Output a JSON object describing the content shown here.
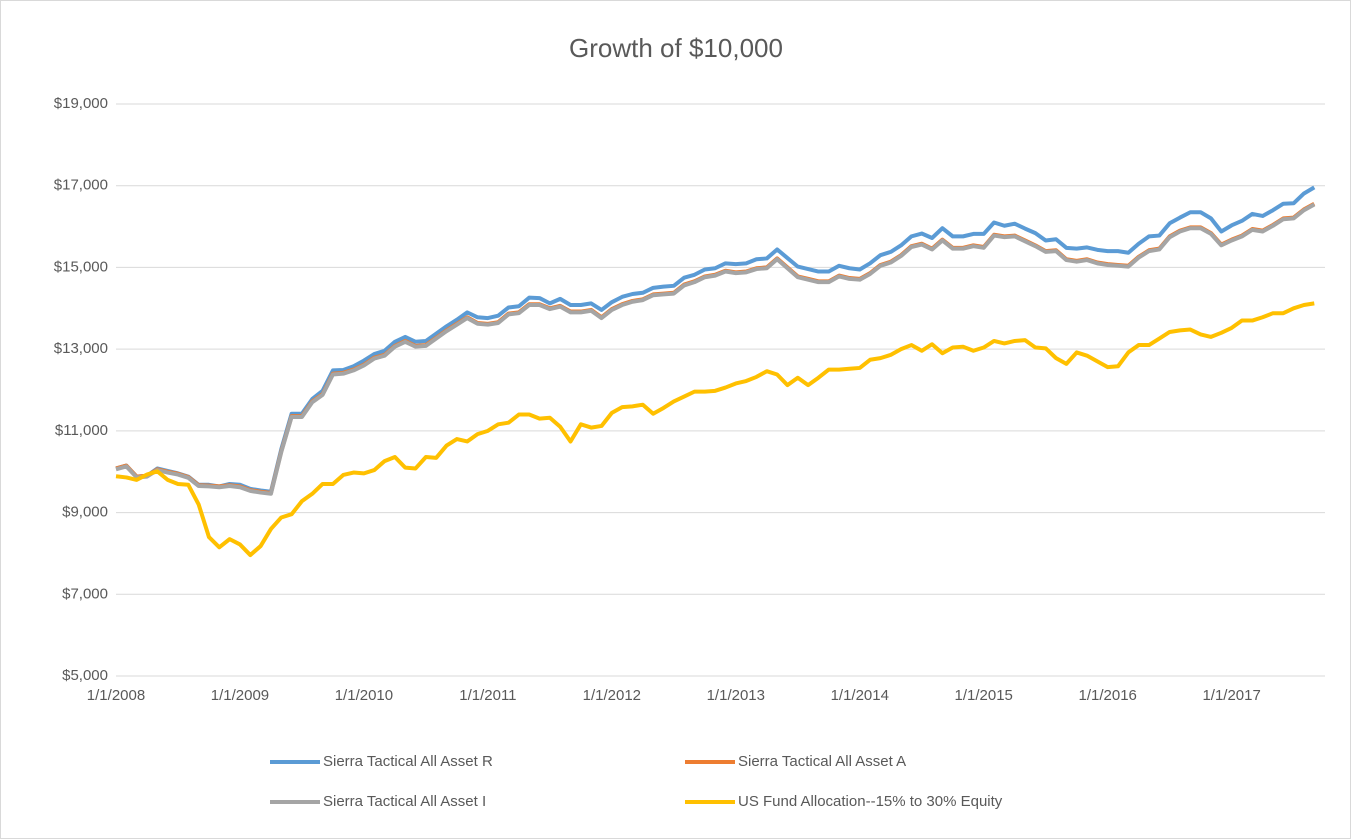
{
  "chart_data": {
    "type": "line",
    "title": "Growth of $10,000",
    "categories": [
      "1/1/2008",
      null,
      null,
      null,
      null,
      null,
      null,
      null,
      null,
      null,
      null,
      null,
      "1/1/2009",
      null,
      null,
      null,
      null,
      null,
      null,
      null,
      null,
      null,
      null,
      null,
      "1/1/2010",
      null,
      null,
      null,
      null,
      null,
      null,
      null,
      null,
      null,
      null,
      null,
      "1/1/2011",
      null,
      null,
      null,
      null,
      null,
      null,
      null,
      null,
      null,
      null,
      null,
      "1/1/2012",
      null,
      null,
      null,
      null,
      null,
      null,
      null,
      null,
      null,
      null,
      null,
      "1/1/2013",
      null,
      null,
      null,
      null,
      null,
      null,
      null,
      null,
      null,
      null,
      null,
      "1/1/2014",
      null,
      null,
      null,
      null,
      null,
      null,
      null,
      null,
      null,
      null,
      null,
      "1/1/2015",
      null,
      null,
      null,
      null,
      null,
      null,
      null,
      null,
      null,
      null,
      null,
      "1/1/2016",
      null,
      null,
      null,
      null,
      null,
      null,
      null,
      null,
      null,
      null,
      null,
      "1/1/2017",
      null,
      null,
      null,
      null,
      null,
      null,
      null,
      null
    ],
    "series": [
      {
        "name": "Sierra Tactical All Asset R",
        "color": "#5b9bd5",
        "values": [
          10080,
          10150,
          9880,
          9900,
          10080,
          10020,
          9960,
          9880,
          9680,
          9680,
          9640,
          9700,
          9680,
          9580,
          9540,
          9510,
          10550,
          11420,
          11420,
          11780,
          11980,
          12480,
          12490,
          12580,
          12720,
          12880,
          12960,
          13180,
          13300,
          13180,
          13200,
          13380,
          13560,
          13720,
          13900,
          13780,
          13760,
          13820,
          14020,
          14050,
          14260,
          14250,
          14120,
          14230,
          14080,
          14080,
          14120,
          13960,
          14150,
          14280,
          14350,
          14380,
          14500,
          14530,
          14550,
          14750,
          14820,
          14950,
          14980,
          15100,
          15080,
          15100,
          15200,
          15220,
          15440,
          15230,
          15020,
          14960,
          14900,
          14900,
          15040,
          14980,
          14950,
          15100,
          15300,
          15380,
          15540,
          15760,
          15830,
          15720,
          15960,
          15760,
          15760,
          15820,
          15820,
          16100,
          16020,
          16070,
          15950,
          15840,
          15660,
          15690,
          15480,
          15460,
          15490,
          15430,
          15400,
          15400,
          15360,
          15580,
          15760,
          15780,
          16080,
          16220,
          16350,
          16350,
          16200,
          15880,
          16030,
          16140,
          16310,
          16260,
          16400,
          16560,
          16570,
          16810,
          16960
        ]
      },
      {
        "name": "Sierra Tactical All Asset A",
        "color": "#ed7d31",
        "values": [
          10080,
          10150,
          9880,
          9900,
          10060,
          10000,
          9950,
          9870,
          9670,
          9660,
          9640,
          9670,
          9640,
          9550,
          9510,
          9480,
          10500,
          11360,
          11360,
          11720,
          11900,
          12400,
          12420,
          12500,
          12620,
          12790,
          12860,
          13080,
          13200,
          13080,
          13100,
          13280,
          13460,
          13620,
          13780,
          13640,
          13620,
          13660,
          13870,
          13900,
          14100,
          14100,
          14000,
          14060,
          13920,
          13920,
          13960,
          13780,
          13980,
          14100,
          14180,
          14220,
          14340,
          14360,
          14380,
          14580,
          14660,
          14780,
          14820,
          14920,
          14880,
          14900,
          14980,
          15000,
          15220,
          15000,
          14780,
          14720,
          14660,
          14660,
          14800,
          14740,
          14720,
          14860,
          15060,
          15140,
          15300,
          15520,
          15580,
          15460,
          15680,
          15480,
          15480,
          15540,
          15500,
          15800,
          15760,
          15780,
          15660,
          15540,
          15400,
          15420,
          15200,
          15160,
          15200,
          15120,
          15080,
          15060,
          15040,
          15260,
          15420,
          15460,
          15760,
          15900,
          15980,
          15980,
          15840,
          15560,
          15680,
          15780,
          15940,
          15900,
          16040,
          16200,
          16220,
          16420,
          16560
        ]
      },
      {
        "name": "Sierra Tactical All Asset I",
        "color": "#a5a5a5",
        "values": [
          10060,
          10130,
          9860,
          9880,
          10040,
          9980,
          9930,
          9850,
          9650,
          9640,
          9620,
          9650,
          9620,
          9530,
          9490,
          9460,
          10480,
          11340,
          11340,
          11700,
          11880,
          12380,
          12400,
          12480,
          12600,
          12770,
          12840,
          13060,
          13180,
          13060,
          13080,
          13260,
          13440,
          13600,
          13760,
          13620,
          13600,
          13640,
          13850,
          13880,
          14080,
          14080,
          13980,
          14040,
          13900,
          13900,
          13940,
          13760,
          13960,
          14080,
          14160,
          14200,
          14320,
          14340,
          14360,
          14560,
          14640,
          14760,
          14800,
          14900,
          14860,
          14880,
          14960,
          14980,
          15200,
          14980,
          14760,
          14700,
          14640,
          14640,
          14780,
          14720,
          14700,
          14840,
          15040,
          15120,
          15280,
          15500,
          15560,
          15440,
          15660,
          15460,
          15460,
          15520,
          15480,
          15780,
          15740,
          15760,
          15640,
          15520,
          15380,
          15400,
          15180,
          15140,
          15180,
          15100,
          15060,
          15040,
          15020,
          15240,
          15400,
          15440,
          15740,
          15880,
          15960,
          15960,
          15820,
          15540,
          15660,
          15760,
          15920,
          15880,
          16020,
          16180,
          16200,
          16400,
          16540
        ]
      },
      {
        "name": "US Fund Allocation--15% to 30% Equity",
        "color": "#ffc000",
        "values": [
          9890,
          9860,
          9800,
          9930,
          10010,
          9800,
          9700,
          9680,
          9200,
          8400,
          8150,
          8350,
          8220,
          7960,
          8180,
          8600,
          8880,
          8960,
          9280,
          9460,
          9700,
          9700,
          9920,
          9980,
          9960,
          10040,
          10260,
          10360,
          10100,
          10080,
          10360,
          10340,
          10640,
          10800,
          10740,
          10920,
          11000,
          11160,
          11200,
          11400,
          11400,
          11300,
          11320,
          11100,
          10740,
          11160,
          11080,
          11120,
          11440,
          11580,
          11600,
          11640,
          11420,
          11560,
          11720,
          11840,
          11960,
          11960,
          11980,
          12060,
          12160,
          12220,
          12320,
          12460,
          12380,
          12120,
          12300,
          12120,
          12300,
          12500,
          12500,
          12520,
          12540,
          12740,
          12780,
          12860,
          13000,
          13100,
          12960,
          13120,
          12900,
          13040,
          13060,
          12960,
          13040,
          13200,
          13140,
          13200,
          13220,
          13040,
          13020,
          12780,
          12640,
          12920,
          12840,
          12700,
          12560,
          12580,
          12920,
          13100,
          13100,
          13260,
          13420,
          13460,
          13480,
          13360,
          13300,
          13400,
          13520,
          13700,
          13700,
          13780,
          13880,
          13880,
          14000,
          14080,
          14120
        ]
      }
    ],
    "ylim": [
      5000,
      19000
    ],
    "yticks": [
      {
        "value": 5000,
        "label": "$5,000"
      },
      {
        "value": 7000,
        "label": "$7,000"
      },
      {
        "value": 9000,
        "label": "$9,000"
      },
      {
        "value": 11000,
        "label": "$11,000"
      },
      {
        "value": 13000,
        "label": "$13,000"
      },
      {
        "value": 15000,
        "label": "$15,000"
      },
      {
        "value": 17000,
        "label": "$17,000"
      },
      {
        "value": 19000,
        "label": "$19,000"
      }
    ],
    "grid": true,
    "legend": "bottom"
  }
}
